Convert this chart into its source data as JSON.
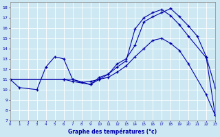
{
  "xlabel": "Graphe des températures (°c)",
  "background_color": "#cde8f2",
  "grid_color": "#b8d8e8",
  "line_color": "#0000aa",
  "series": [
    {
      "x": [
        0,
        1,
        3,
        4,
        5,
        6,
        7,
        8,
        9,
        10,
        11,
        12,
        13,
        14,
        15,
        16,
        17,
        18,
        19,
        20,
        21,
        22,
        23
      ],
      "y": [
        11,
        10.2,
        10.0,
        12.2,
        13.2,
        13.0,
        11.0,
        10.7,
        10.8,
        11.0,
        11.5,
        12.5,
        13.0,
        14.3,
        16.6,
        17.1,
        17.5,
        17.9,
        17.1,
        16.2,
        15.2,
        13.2,
        10.2
      ]
    },
    {
      "x": [
        0,
        6,
        7,
        9,
        10,
        11,
        12,
        13,
        14,
        15,
        16,
        17,
        18,
        19,
        20,
        22,
        23
      ],
      "y": [
        11,
        11.0,
        11.0,
        10.5,
        11.2,
        11.5,
        12.2,
        12.8,
        15.9,
        17.0,
        17.5,
        17.8,
        17.2,
        16.3,
        15.2,
        13.1,
        7.5
      ]
    },
    {
      "x": [
        0,
        6,
        7,
        9,
        10,
        11,
        12,
        13,
        14,
        15,
        16,
        17,
        18,
        19,
        20,
        22,
        23
      ],
      "y": [
        11,
        11.0,
        10.8,
        10.5,
        11.0,
        11.2,
        11.7,
        12.3,
        13.2,
        14.0,
        14.8,
        15.0,
        14.5,
        13.8,
        12.5,
        9.5,
        7.5
      ]
    }
  ],
  "xlim": [
    0,
    23
  ],
  "ylim": [
    7,
    18.5
  ],
  "yticks": [
    7,
    8,
    9,
    10,
    11,
    12,
    13,
    14,
    15,
    16,
    17,
    18
  ],
  "xticks": [
    0,
    1,
    2,
    3,
    4,
    5,
    6,
    7,
    8,
    9,
    10,
    11,
    12,
    13,
    14,
    15,
    16,
    17,
    18,
    19,
    20,
    21,
    22,
    23
  ],
  "fig_width": 3.2,
  "fig_height": 2.0,
  "dpi": 100
}
